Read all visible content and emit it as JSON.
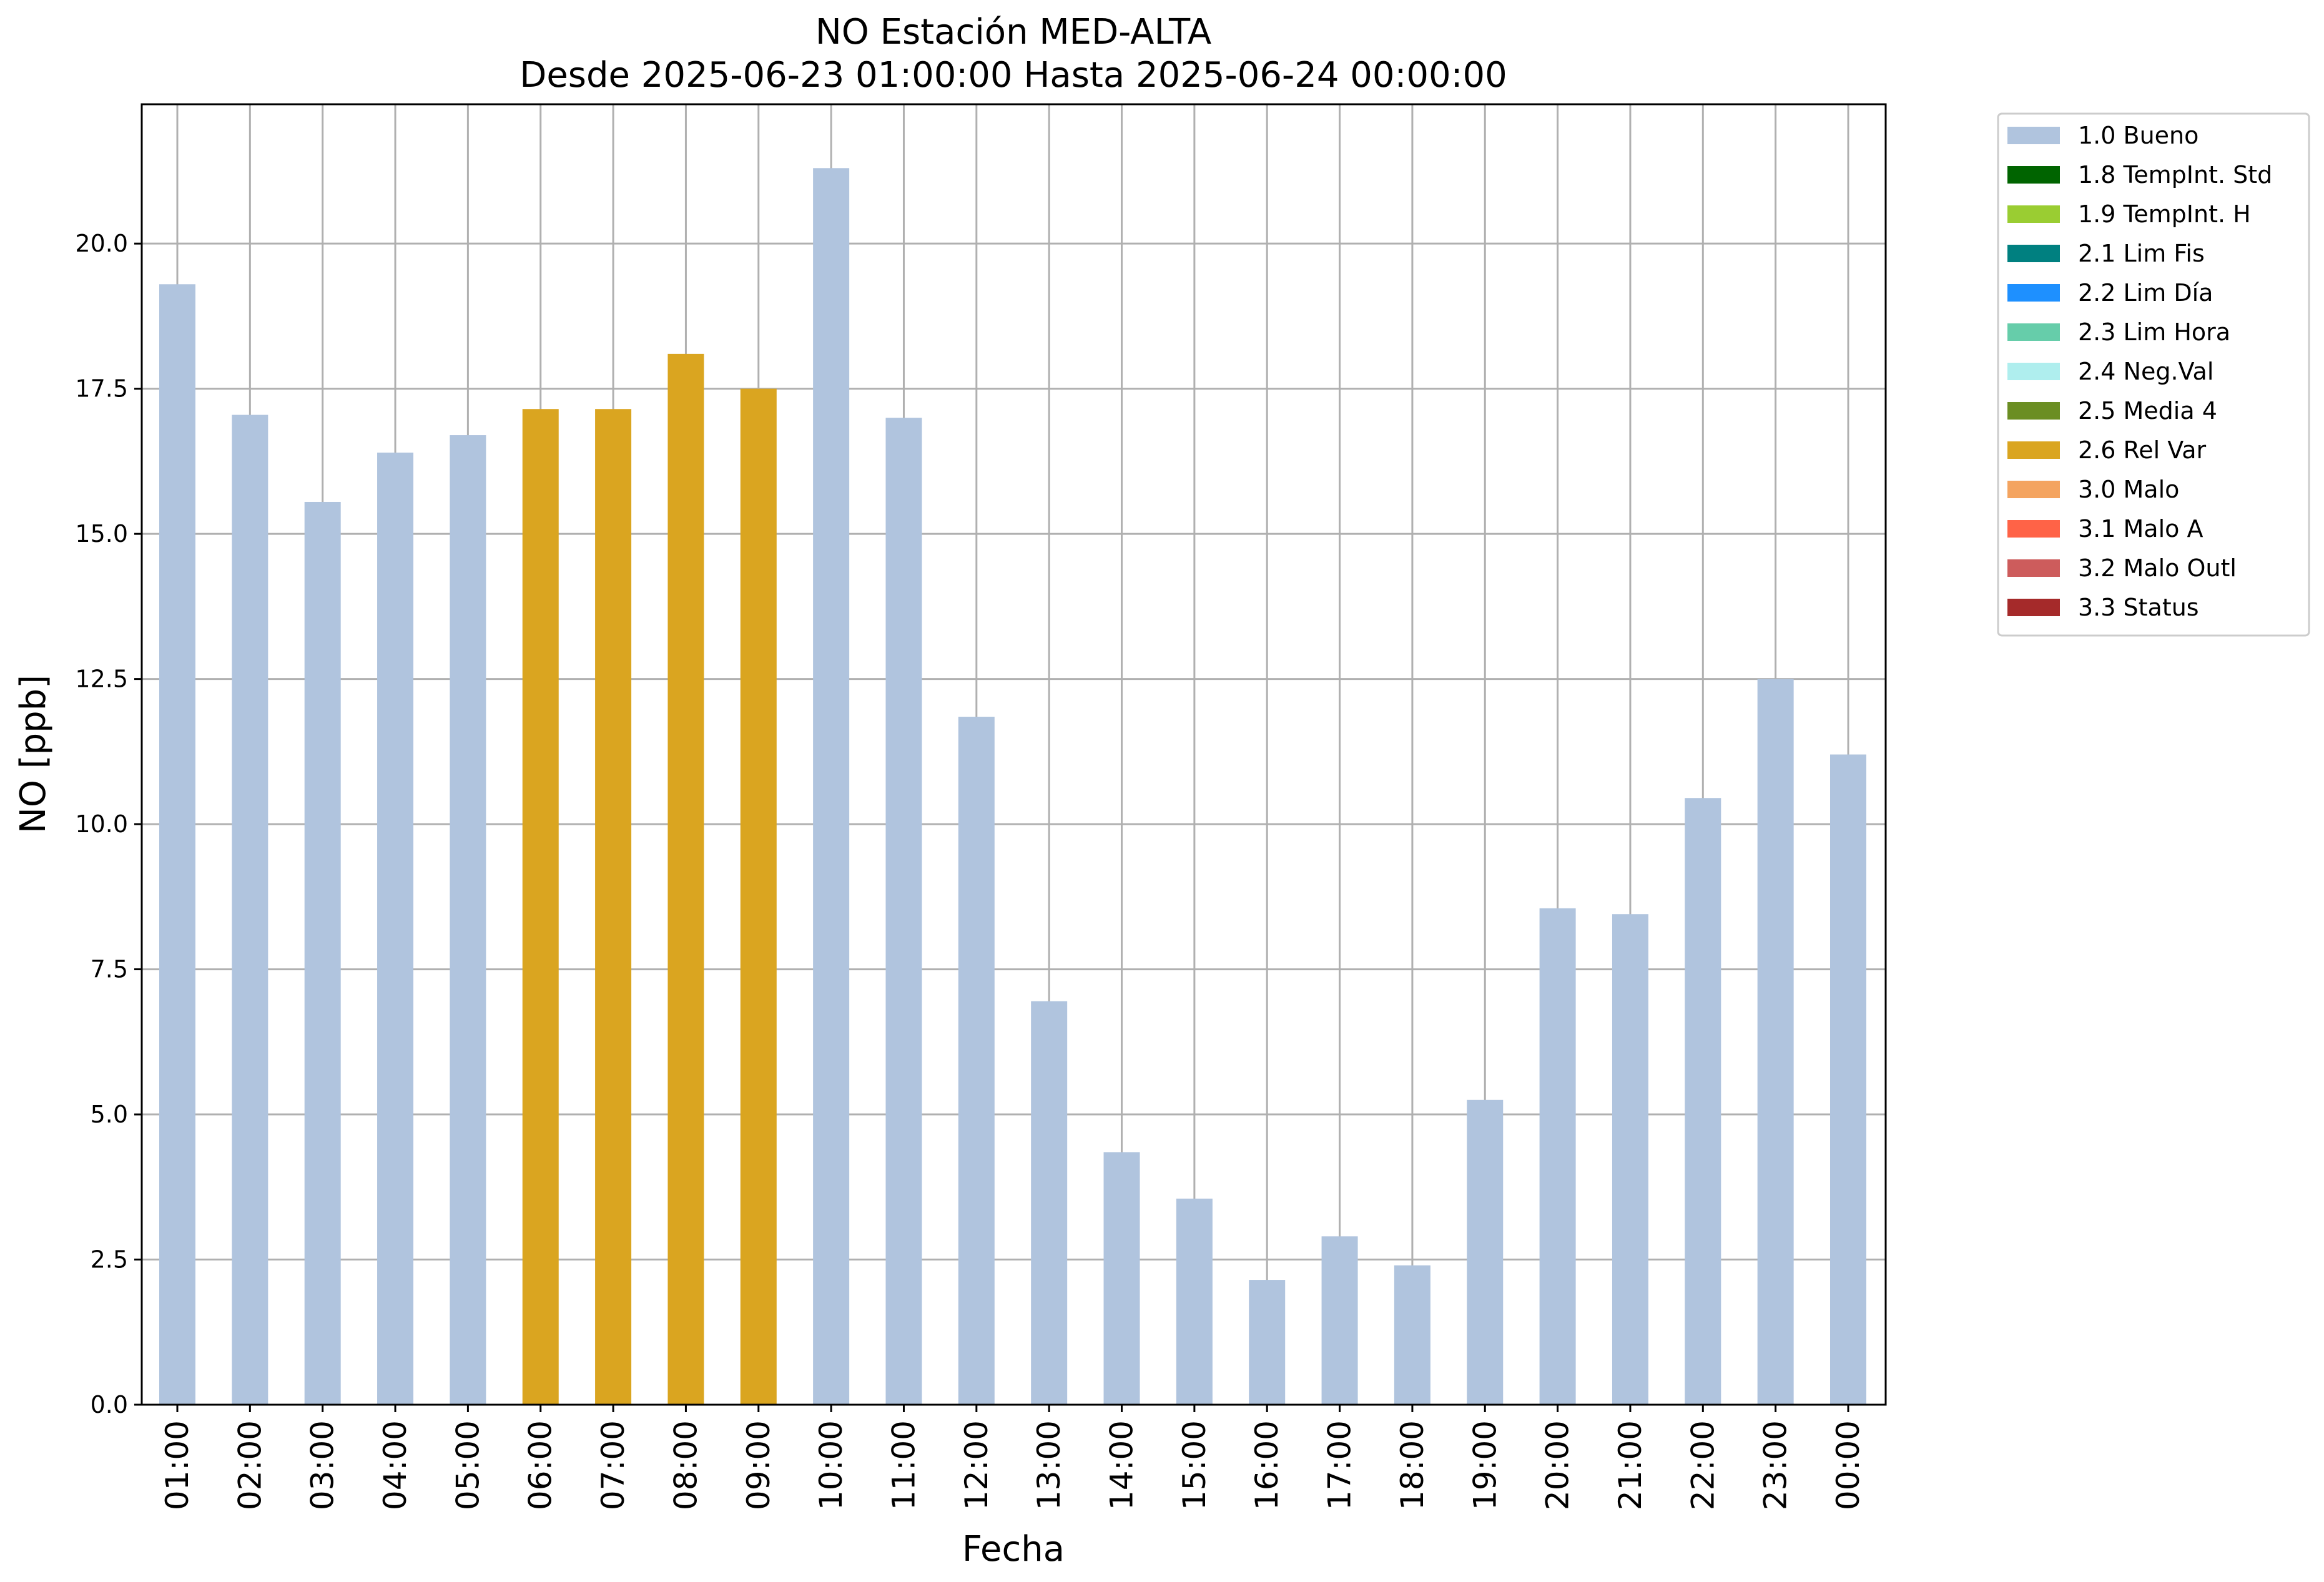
{
  "chart_data": {
    "type": "bar",
    "title": "NO Estación MED-ALTA",
    "subtitle": "Desde 2025-06-23 01:00:00 Hasta 2025-06-24 00:00:00",
    "xlabel": "Fecha",
    "ylabel": "NO [ppb]",
    "ylim": [
      0,
      22.4
    ],
    "yticks": [
      "0.0",
      "2.5",
      "5.0",
      "7.5",
      "10.0",
      "12.5",
      "15.0",
      "17.5",
      "20.0"
    ],
    "grid": true,
    "legend_position": "outside-right-top",
    "categories": [
      "01:00",
      "02:00",
      "03:00",
      "04:00",
      "05:00",
      "06:00",
      "07:00",
      "08:00",
      "09:00",
      "10:00",
      "11:00",
      "12:00",
      "13:00",
      "14:00",
      "15:00",
      "16:00",
      "17:00",
      "18:00",
      "19:00",
      "20:00",
      "21:00",
      "22:00",
      "23:00",
      "00:00"
    ],
    "values": [
      19.3,
      17.05,
      15.55,
      16.4,
      16.7,
      17.15,
      17.15,
      18.1,
      17.5,
      21.3,
      17.0,
      11.85,
      6.95,
      4.35,
      3.55,
      2.15,
      2.9,
      2.4,
      5.25,
      8.55,
      8.45,
      10.45,
      12.5,
      11.2
    ],
    "flags": [
      "1.0 Bueno",
      "1.0 Bueno",
      "1.0 Bueno",
      "1.0 Bueno",
      "1.0 Bueno",
      "2.6 Rel Var",
      "2.6 Rel Var",
      "2.6 Rel Var",
      "2.6 Rel Var",
      "1.0 Bueno",
      "1.0 Bueno",
      "1.0 Bueno",
      "1.0 Bueno",
      "1.0 Bueno",
      "1.0 Bueno",
      "1.0 Bueno",
      "1.0 Bueno",
      "1.0 Bueno",
      "1.0 Bueno",
      "1.0 Bueno",
      "1.0 Bueno",
      "1.0 Bueno",
      "1.0 Bueno",
      "1.0 Bueno"
    ],
    "legend": [
      {
        "label": "1.0 Bueno",
        "color": "#b0c4de"
      },
      {
        "label": "1.8 TempInt. Std",
        "color": "#006400"
      },
      {
        "label": "1.9 TempInt. H",
        "color": "#9acd32"
      },
      {
        "label": "2.1 Lim Fis",
        "color": "#008080"
      },
      {
        "label": "2.2 Lim Día",
        "color": "#1e90ff"
      },
      {
        "label": "2.3 Lim Hora",
        "color": "#66cdaa"
      },
      {
        "label": "2.4 Neg.Val",
        "color": "#afeeee"
      },
      {
        "label": "2.5 Media 4",
        "color": "#6b8e23"
      },
      {
        "label": "2.6 Rel Var",
        "color": "#daa520"
      },
      {
        "label": "3.0 Malo",
        "color": "#f4a460"
      },
      {
        "label": "3.1 Malo A",
        "color": "#ff6347"
      },
      {
        "label": "3.2 Malo Outl",
        "color": "#cd5c5c"
      },
      {
        "label": "3.3 Status",
        "color": "#a52a2a"
      }
    ]
  }
}
